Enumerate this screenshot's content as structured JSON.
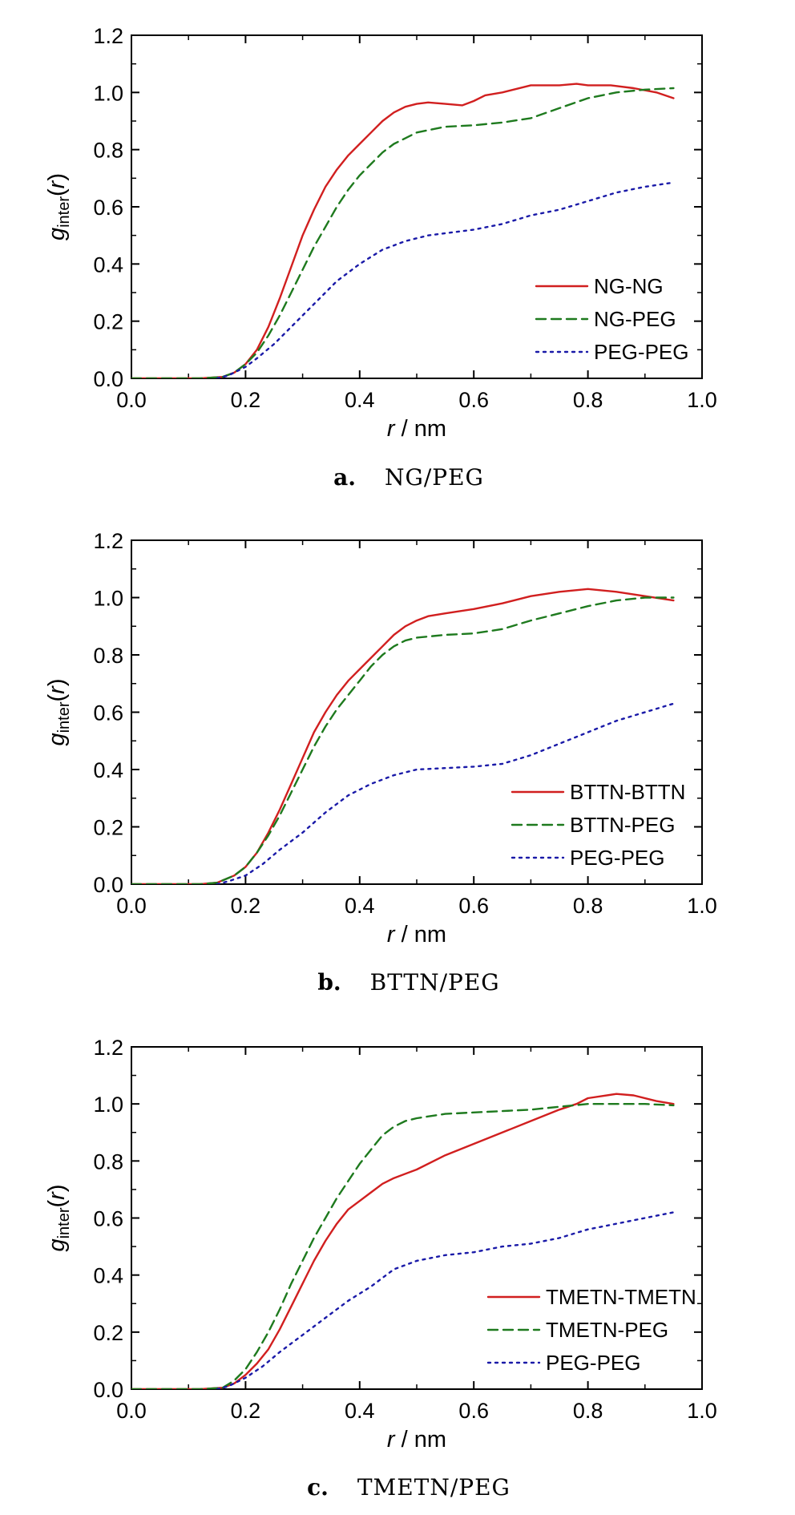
{
  "colors": {
    "series1": "#d11f1f",
    "series2": "#1e7a1e",
    "series3": "#1a1aa8",
    "axis": "#000000"
  },
  "chart_data": [
    {
      "type": "line",
      "caption_letter": "a.",
      "caption": "NG/PEG",
      "xlabel_var": "r",
      "xlabel_unit": " / nm",
      "ylabel_var": "g",
      "ylabel_sub": "inter",
      "ylabel_arg": "r",
      "xlim": [
        0,
        1.0
      ],
      "ylim": [
        0,
        1.2
      ],
      "xticks": [
        "0.0",
        "0.2",
        "0.4",
        "0.6",
        "0.8",
        "1.0"
      ],
      "yticks": [
        "0.0",
        "0.2",
        "0.4",
        "0.6",
        "0.8",
        "1.0",
        "1.2"
      ],
      "legend_position": "lower-right",
      "grid": false,
      "series": [
        {
          "name": "NG-NG",
          "style": "solid",
          "x": [
            0,
            0.12,
            0.16,
            0.18,
            0.2,
            0.22,
            0.24,
            0.26,
            0.28,
            0.3,
            0.32,
            0.34,
            0.36,
            0.38,
            0.4,
            0.42,
            0.44,
            0.46,
            0.48,
            0.5,
            0.52,
            0.55,
            0.58,
            0.6,
            0.62,
            0.65,
            0.7,
            0.75,
            0.78,
            0.8,
            0.84,
            0.88,
            0.92,
            0.95
          ],
          "y": [
            0,
            0,
            0.005,
            0.02,
            0.05,
            0.1,
            0.18,
            0.28,
            0.39,
            0.5,
            0.59,
            0.67,
            0.73,
            0.78,
            0.82,
            0.86,
            0.9,
            0.93,
            0.95,
            0.96,
            0.965,
            0.96,
            0.955,
            0.97,
            0.99,
            1.0,
            1.025,
            1.025,
            1.03,
            1.025,
            1.025,
            1.015,
            1.0,
            0.98
          ]
        },
        {
          "name": "NG-PEG",
          "style": "dashed",
          "x": [
            0,
            0.12,
            0.16,
            0.18,
            0.2,
            0.22,
            0.24,
            0.26,
            0.28,
            0.3,
            0.32,
            0.34,
            0.36,
            0.38,
            0.4,
            0.42,
            0.44,
            0.46,
            0.48,
            0.5,
            0.55,
            0.6,
            0.65,
            0.7,
            0.75,
            0.8,
            0.85,
            0.9,
            0.95
          ],
          "y": [
            0,
            0,
            0.005,
            0.02,
            0.05,
            0.09,
            0.15,
            0.22,
            0.3,
            0.38,
            0.46,
            0.53,
            0.6,
            0.66,
            0.71,
            0.75,
            0.79,
            0.82,
            0.84,
            0.86,
            0.88,
            0.885,
            0.895,
            0.91,
            0.945,
            0.98,
            1.0,
            1.01,
            1.015
          ]
        },
        {
          "name": "PEG-PEG",
          "style": "dotted",
          "x": [
            0.15,
            0.17,
            0.2,
            0.22,
            0.25,
            0.28,
            0.3,
            0.33,
            0.36,
            0.4,
            0.44,
            0.48,
            0.52,
            0.56,
            0.6,
            0.65,
            0.7,
            0.75,
            0.8,
            0.85,
            0.9,
            0.95
          ],
          "y": [
            0,
            0.01,
            0.04,
            0.07,
            0.12,
            0.18,
            0.22,
            0.28,
            0.34,
            0.4,
            0.45,
            0.48,
            0.5,
            0.51,
            0.52,
            0.54,
            0.57,
            0.59,
            0.62,
            0.65,
            0.67,
            0.685
          ]
        }
      ]
    },
    {
      "type": "line",
      "caption_letter": "b.",
      "caption": "BTTN/PEG",
      "xlabel_var": "r",
      "xlabel_unit": " / nm",
      "ylabel_var": "g",
      "ylabel_sub": "inter",
      "ylabel_arg": "r",
      "xlim": [
        0,
        1.0
      ],
      "ylim": [
        0,
        1.2
      ],
      "xticks": [
        "0.0",
        "0.2",
        "0.4",
        "0.6",
        "0.8",
        "1.0"
      ],
      "yticks": [
        "0.0",
        "0.2",
        "0.4",
        "0.6",
        "0.8",
        "1.0",
        "1.2"
      ],
      "legend_position": "lower-right",
      "grid": false,
      "series": [
        {
          "name": "BTTN-BTTN",
          "style": "solid",
          "x": [
            0,
            0.12,
            0.15,
            0.18,
            0.2,
            0.22,
            0.24,
            0.26,
            0.28,
            0.3,
            0.32,
            0.34,
            0.36,
            0.38,
            0.4,
            0.42,
            0.44,
            0.46,
            0.48,
            0.5,
            0.52,
            0.55,
            0.6,
            0.65,
            0.7,
            0.75,
            0.8,
            0.85,
            0.9,
            0.95
          ],
          "y": [
            0,
            0,
            0.005,
            0.03,
            0.06,
            0.11,
            0.18,
            0.26,
            0.35,
            0.44,
            0.53,
            0.6,
            0.66,
            0.71,
            0.75,
            0.79,
            0.83,
            0.87,
            0.9,
            0.92,
            0.935,
            0.945,
            0.96,
            0.98,
            1.005,
            1.02,
            1.03,
            1.02,
            1.005,
            0.99
          ]
        },
        {
          "name": "BTTN-PEG",
          "style": "dashed",
          "x": [
            0,
            0.12,
            0.15,
            0.18,
            0.2,
            0.22,
            0.24,
            0.26,
            0.28,
            0.3,
            0.32,
            0.34,
            0.36,
            0.38,
            0.4,
            0.42,
            0.44,
            0.46,
            0.48,
            0.5,
            0.55,
            0.6,
            0.65,
            0.7,
            0.75,
            0.8,
            0.85,
            0.9,
            0.95
          ],
          "y": [
            0,
            0,
            0.005,
            0.03,
            0.06,
            0.11,
            0.17,
            0.24,
            0.32,
            0.4,
            0.48,
            0.55,
            0.61,
            0.66,
            0.71,
            0.76,
            0.8,
            0.83,
            0.85,
            0.86,
            0.87,
            0.875,
            0.89,
            0.92,
            0.945,
            0.97,
            0.99,
            1.0,
            1.0
          ]
        },
        {
          "name": "PEG-PEG",
          "style": "dotted",
          "x": [
            0.15,
            0.17,
            0.2,
            0.23,
            0.26,
            0.3,
            0.34,
            0.38,
            0.42,
            0.46,
            0.5,
            0.55,
            0.6,
            0.65,
            0.7,
            0.75,
            0.8,
            0.85,
            0.9,
            0.95
          ],
          "y": [
            0,
            0.01,
            0.03,
            0.07,
            0.12,
            0.18,
            0.25,
            0.31,
            0.35,
            0.38,
            0.4,
            0.405,
            0.41,
            0.42,
            0.45,
            0.49,
            0.53,
            0.57,
            0.6,
            0.63
          ]
        }
      ]
    },
    {
      "type": "line",
      "caption_letter": "c.",
      "caption": "TMETN/PEG",
      "xlabel_var": "r",
      "xlabel_unit": " / nm",
      "ylabel_var": "g",
      "ylabel_sub": "inter",
      "ylabel_arg": "r",
      "xlim": [
        0,
        1.0
      ],
      "ylim": [
        0,
        1.2
      ],
      "xticks": [
        "0.0",
        "0.2",
        "0.4",
        "0.6",
        "0.8",
        "1.0"
      ],
      "yticks": [
        "0.0",
        "0.2",
        "0.4",
        "0.6",
        "0.8",
        "1.0",
        "1.2"
      ],
      "legend_position": "lower-right",
      "grid": false,
      "series": [
        {
          "name": "TMETN-TMETN",
          "style": "solid",
          "x": [
            0,
            0.12,
            0.16,
            0.18,
            0.2,
            0.22,
            0.24,
            0.26,
            0.28,
            0.3,
            0.32,
            0.34,
            0.36,
            0.38,
            0.4,
            0.42,
            0.44,
            0.46,
            0.5,
            0.55,
            0.6,
            0.65,
            0.7,
            0.75,
            0.78,
            0.8,
            0.85,
            0.88,
            0.92,
            0.95
          ],
          "y": [
            0,
            0,
            0.005,
            0.02,
            0.05,
            0.09,
            0.14,
            0.21,
            0.29,
            0.37,
            0.45,
            0.52,
            0.58,
            0.63,
            0.66,
            0.69,
            0.72,
            0.74,
            0.77,
            0.82,
            0.86,
            0.9,
            0.94,
            0.98,
            1.0,
            1.02,
            1.035,
            1.03,
            1.01,
            1.0
          ]
        },
        {
          "name": "TMETN-PEG",
          "style": "dashed",
          "x": [
            0,
            0.12,
            0.16,
            0.18,
            0.2,
            0.22,
            0.24,
            0.26,
            0.28,
            0.3,
            0.32,
            0.34,
            0.36,
            0.38,
            0.4,
            0.42,
            0.44,
            0.46,
            0.48,
            0.5,
            0.55,
            0.6,
            0.65,
            0.7,
            0.75,
            0.8,
            0.85,
            0.9,
            0.95
          ],
          "y": [
            0,
            0,
            0.005,
            0.03,
            0.07,
            0.13,
            0.2,
            0.28,
            0.37,
            0.45,
            0.53,
            0.6,
            0.67,
            0.73,
            0.79,
            0.84,
            0.89,
            0.92,
            0.94,
            0.95,
            0.965,
            0.97,
            0.975,
            0.98,
            0.99,
            1.0,
            1.0,
            1.0,
            0.995
          ]
        },
        {
          "name": "PEG-PEG",
          "style": "dotted",
          "x": [
            0.15,
            0.17,
            0.2,
            0.23,
            0.26,
            0.3,
            0.34,
            0.38,
            0.42,
            0.46,
            0.5,
            0.55,
            0.6,
            0.65,
            0.7,
            0.75,
            0.8,
            0.85,
            0.9,
            0.95
          ],
          "y": [
            0,
            0.01,
            0.04,
            0.08,
            0.13,
            0.19,
            0.25,
            0.31,
            0.36,
            0.42,
            0.45,
            0.47,
            0.48,
            0.5,
            0.51,
            0.53,
            0.56,
            0.58,
            0.6,
            0.62
          ]
        }
      ]
    }
  ]
}
